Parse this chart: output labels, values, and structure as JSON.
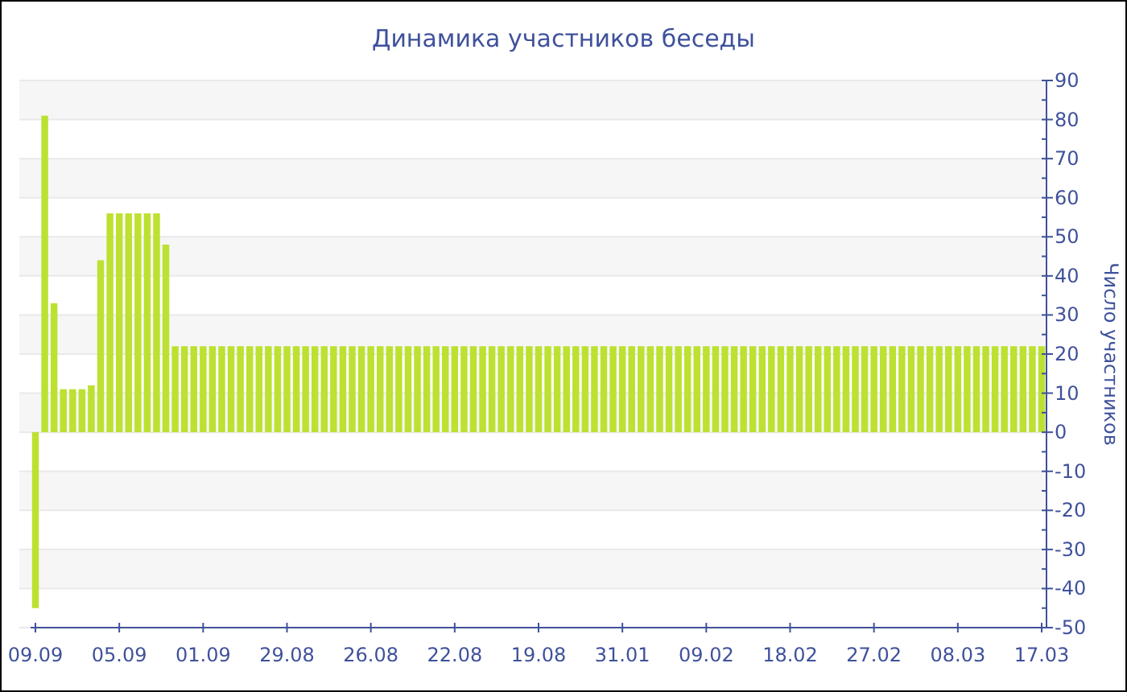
{
  "chart_data": {
    "type": "bar",
    "title": "Динамика участников беседы",
    "ylabel": "Число участников",
    "categories": [
      "09.09",
      null,
      null,
      null,
      null,
      null,
      null,
      null,
      null,
      "05.09",
      null,
      null,
      null,
      null,
      null,
      null,
      null,
      null,
      "01.09",
      null,
      null,
      null,
      null,
      null,
      null,
      null,
      null,
      "29.08",
      null,
      null,
      null,
      null,
      null,
      null,
      null,
      null,
      "26.08",
      null,
      null,
      null,
      null,
      null,
      null,
      null,
      null,
      "22.08",
      null,
      null,
      null,
      null,
      null,
      null,
      null,
      null,
      "19.08",
      null,
      null,
      null,
      null,
      null,
      null,
      null,
      null,
      "31.01",
      null,
      null,
      null,
      null,
      null,
      null,
      null,
      null,
      "09.02",
      null,
      null,
      null,
      null,
      null,
      null,
      null,
      null,
      "18.02",
      null,
      null,
      null,
      null,
      null,
      null,
      null,
      null,
      "27.02",
      null,
      null,
      null,
      null,
      null,
      null,
      null,
      null,
      "08.03",
      null,
      null,
      null,
      null,
      null,
      null,
      null,
      null,
      "17.03"
    ],
    "values": [
      -45,
      81,
      33,
      11,
      11,
      11,
      12,
      44,
      56,
      56,
      56,
      56,
      56,
      56,
      48,
      22,
      22,
      22,
      22,
      22,
      22,
      22,
      22,
      22,
      22,
      22,
      22,
      22,
      22,
      22,
      22,
      22,
      22,
      22,
      22,
      22,
      22,
      22,
      22,
      22,
      22,
      22,
      22,
      22,
      22,
      22,
      22,
      22,
      22,
      22,
      22,
      22,
      22,
      22,
      22,
      22,
      22,
      22,
      22,
      22,
      22,
      22,
      22,
      22,
      22,
      22,
      22,
      22,
      22,
      22,
      22,
      22,
      22,
      22,
      22,
      22,
      22,
      22,
      22,
      22,
      22,
      22,
      22,
      22,
      22,
      22,
      22,
      22,
      22,
      22,
      22,
      22,
      22,
      22,
      22,
      22,
      22,
      22,
      22,
      22,
      22,
      22,
      22,
      22,
      22,
      22,
      22,
      22,
      22
    ],
    "color": "#bce131",
    "ylim": [
      -50,
      90
    ],
    "yticks": [
      -50,
      {
        "value": -45,
        "label": null
      },
      -40,
      {
        "value": -35,
        "label": null
      },
      -30,
      {
        "value": -25,
        "label": null
      },
      -20,
      {
        "value": -15,
        "label": null
      },
      -10,
      {
        "value": -5,
        "label": null
      },
      0,
      {
        "value": 5,
        "label": null
      },
      10,
      {
        "value": 15,
        "label": null
      },
      20,
      {
        "value": 25,
        "label": null
      },
      30,
      {
        "value": 35,
        "label": null
      },
      40,
      {
        "value": 45,
        "label": null
      },
      50,
      {
        "value": 55,
        "label": null
      },
      60,
      {
        "value": 65,
        "label": null
      },
      70,
      {
        "value": 75,
        "label": null
      },
      80,
      {
        "value": 85,
        "label": null
      },
      90
    ],
    "grid": "y"
  }
}
